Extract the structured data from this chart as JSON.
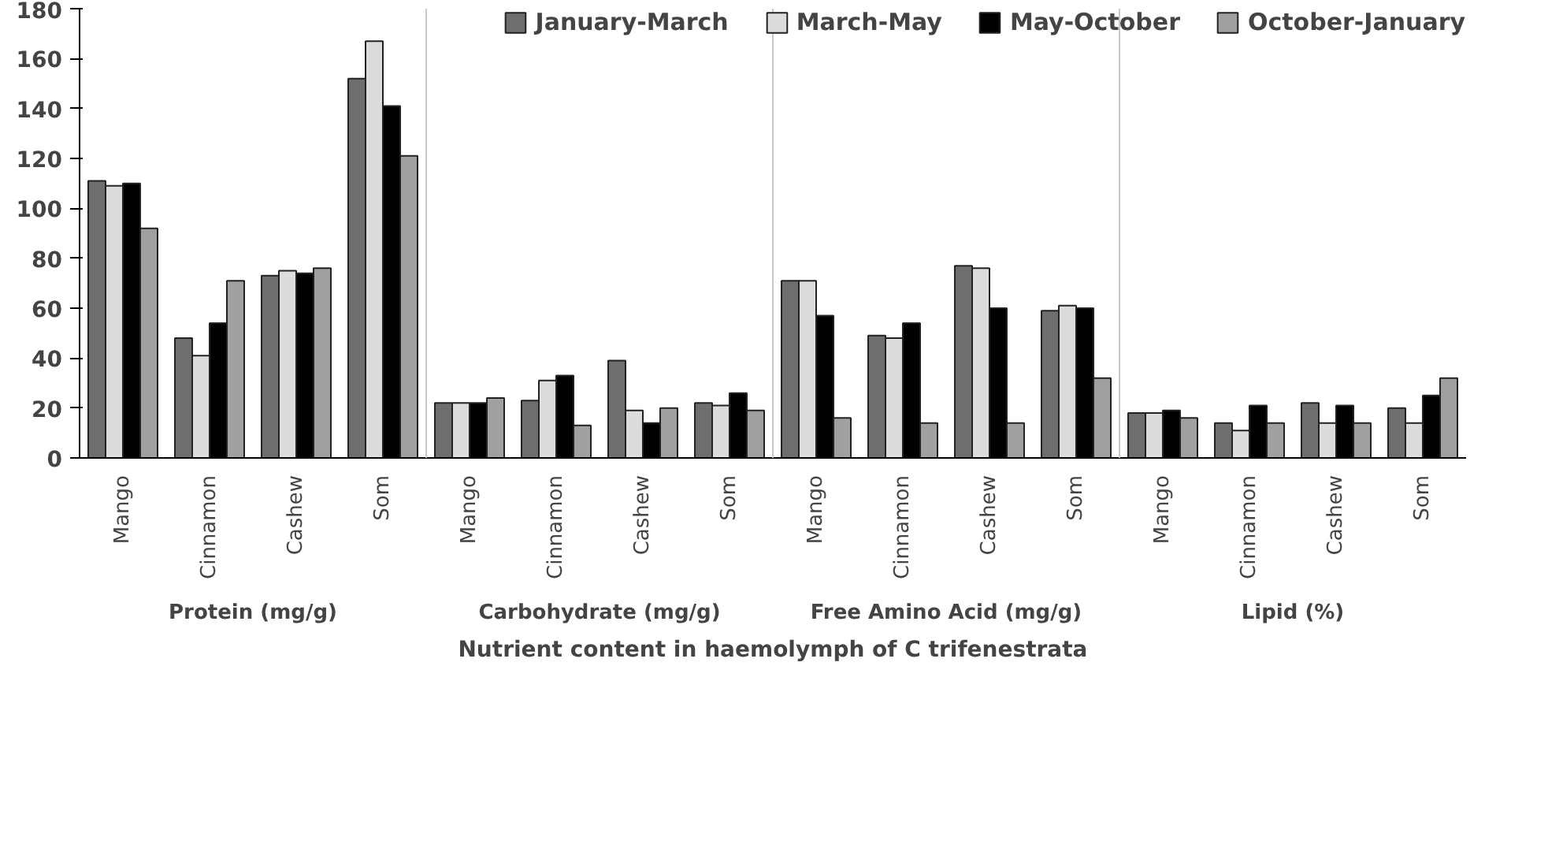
{
  "chart_data": {
    "type": "bar",
    "xlabel": "Nutrient content in haemolymph of C trifenestrata",
    "categories": [
      "Mango",
      "Cinnamon",
      "Cashew",
      "Som",
      "Mango",
      "Cinnamon",
      "Cashew",
      "Som",
      "Mango",
      "Cinnamon",
      "Cashew",
      "Som",
      "Mango",
      "Cinnamon",
      "Cashew",
      "Som"
    ],
    "annotations": [
      "Protein (mg/g)",
      "Carbohydrate (mg/g)",
      "Free Amino Acid (mg/g)",
      "Lipid (%)"
    ],
    "series": [
      {
        "name": "January-March",
        "color": "#6e6e6e",
        "values": [
          111,
          48,
          73,
          152,
          22,
          23,
          39,
          22,
          71,
          49,
          77,
          59,
          18,
          14,
          22,
          20
        ]
      },
      {
        "name": "March-May",
        "color": "#dcdcdc",
        "values": [
          109,
          41,
          75,
          167,
          22,
          31,
          19,
          21,
          71,
          48,
          76,
          61,
          18,
          11,
          14,
          14
        ]
      },
      {
        "name": "May-October",
        "color": "#000000",
        "values": [
          110,
          54,
          74,
          141,
          22,
          33,
          14,
          26,
          57,
          54,
          60,
          60,
          19,
          21,
          21,
          25
        ]
      },
      {
        "name": "October-January",
        "color": "#a0a0a0",
        "values": [
          92,
          71,
          76,
          121,
          24,
          13,
          20,
          19,
          16,
          14,
          14,
          32,
          16,
          14,
          14,
          32
        ]
      }
    ],
    "ylim": [
      0,
      180
    ],
    "yticks": [
      0,
      20,
      40,
      60,
      80,
      100,
      120,
      140,
      160,
      180
    ],
    "grid": false,
    "legend": "top"
  }
}
